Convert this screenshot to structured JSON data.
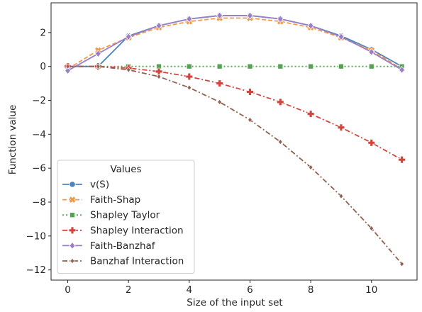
{
  "chart_data": {
    "type": "line",
    "title": "",
    "xlabel": "Size of the input set",
    "ylabel": "Function value",
    "xlim": [
      -0.55,
      11.5
    ],
    "ylim": [
      -12.6,
      3.75
    ],
    "xticks": [
      0,
      2,
      4,
      6,
      8,
      10
    ],
    "yticks": [
      -12,
      -10,
      -8,
      -6,
      -4,
      -2,
      0,
      2
    ],
    "grid": false,
    "legend": {
      "title": "Values",
      "placement": "lower-left"
    },
    "x": [
      0,
      1,
      2,
      3,
      4,
      5,
      6,
      7,
      8,
      9,
      10,
      11
    ],
    "series": [
      {
        "name": "v(S)",
        "color": "#4c84bd",
        "dash": "solid",
        "marker": "circle",
        "values": [
          0,
          0,
          1.8,
          2.4,
          2.8,
          3.0,
          3.0,
          2.8,
          2.4,
          1.8,
          1.0,
          0
        ]
      },
      {
        "name": "Faith-Shap",
        "color": "#ef9a4a",
        "dash": "dashed",
        "marker": "x",
        "values": [
          -0.15,
          0.95,
          1.7,
          2.3,
          2.65,
          2.85,
          2.85,
          2.65,
          2.3,
          1.7,
          0.95,
          -0.15
        ]
      },
      {
        "name": "Shapley Taylor",
        "color": "#55a352",
        "dash": "dotted",
        "marker": "square",
        "values": [
          0,
          0,
          0,
          0,
          0,
          0,
          0,
          0,
          0,
          0,
          0,
          0
        ]
      },
      {
        "name": "Shapley Interaction",
        "color": "#d0463f",
        "dash": "dashdot",
        "marker": "plus",
        "values": [
          0,
          0,
          -0.1,
          -0.3,
          -0.6,
          -1.0,
          -1.5,
          -2.1,
          -2.8,
          -3.6,
          -4.5,
          -5.5
        ]
      },
      {
        "name": "Faith-Banzhaf",
        "color": "#9b7fc6",
        "dash": "solid",
        "marker": "diamond",
        "values": [
          -0.25,
          0.75,
          1.75,
          2.4,
          2.8,
          3.0,
          3.0,
          2.8,
          2.4,
          1.75,
          0.85,
          -0.2
        ]
      },
      {
        "name": "Banzhaf Interaction",
        "color": "#92614f",
        "dash": "dashdot",
        "marker": "diamond-small",
        "values": [
          0,
          0,
          -0.2,
          -0.6,
          -1.25,
          -2.1,
          -3.15,
          -4.45,
          -5.95,
          -7.65,
          -9.55,
          -11.65
        ]
      }
    ]
  }
}
